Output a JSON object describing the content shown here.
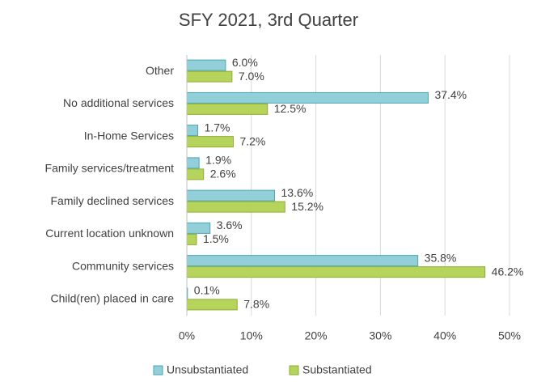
{
  "chart_data": {
    "type": "hbar",
    "title": "SFY 2021, 3rd Quarter",
    "categories": [
      "Other",
      "No additional services",
      "In-Home Services",
      "Family services/treatment",
      "Family declined services",
      "Current location unknown",
      "Community services",
      "Child(ren) placed in care"
    ],
    "series": [
      {
        "name": "Unsubstantiated",
        "color": "#92cfd8",
        "values": [
          6.0,
          37.4,
          1.7,
          1.9,
          13.6,
          3.6,
          35.8,
          0.1
        ],
        "value_labels": [
          "6.0%",
          "37.4%",
          "1.7%",
          "1.9%",
          "13.6%",
          "3.6%",
          "35.8%",
          "0.1%"
        ]
      },
      {
        "name": "Substantiated",
        "color": "#b6d45c",
        "values": [
          7.0,
          12.5,
          7.2,
          2.6,
          15.2,
          1.5,
          46.2,
          7.8
        ],
        "value_labels": [
          "7.0%",
          "12.5%",
          "7.2%",
          "2.6%",
          "15.2%",
          "1.5%",
          "46.2%",
          "7.8%"
        ]
      }
    ],
    "xlim": [
      0,
      50
    ],
    "xticks": [
      {
        "value": 0,
        "label": "0%"
      },
      {
        "value": 10,
        "label": "10%"
      },
      {
        "value": 20,
        "label": "20%"
      },
      {
        "value": 30,
        "label": "30%"
      },
      {
        "value": 40,
        "label": "40%"
      },
      {
        "value": 50,
        "label": "50%"
      }
    ],
    "grid": true,
    "legend": "bottom"
  }
}
